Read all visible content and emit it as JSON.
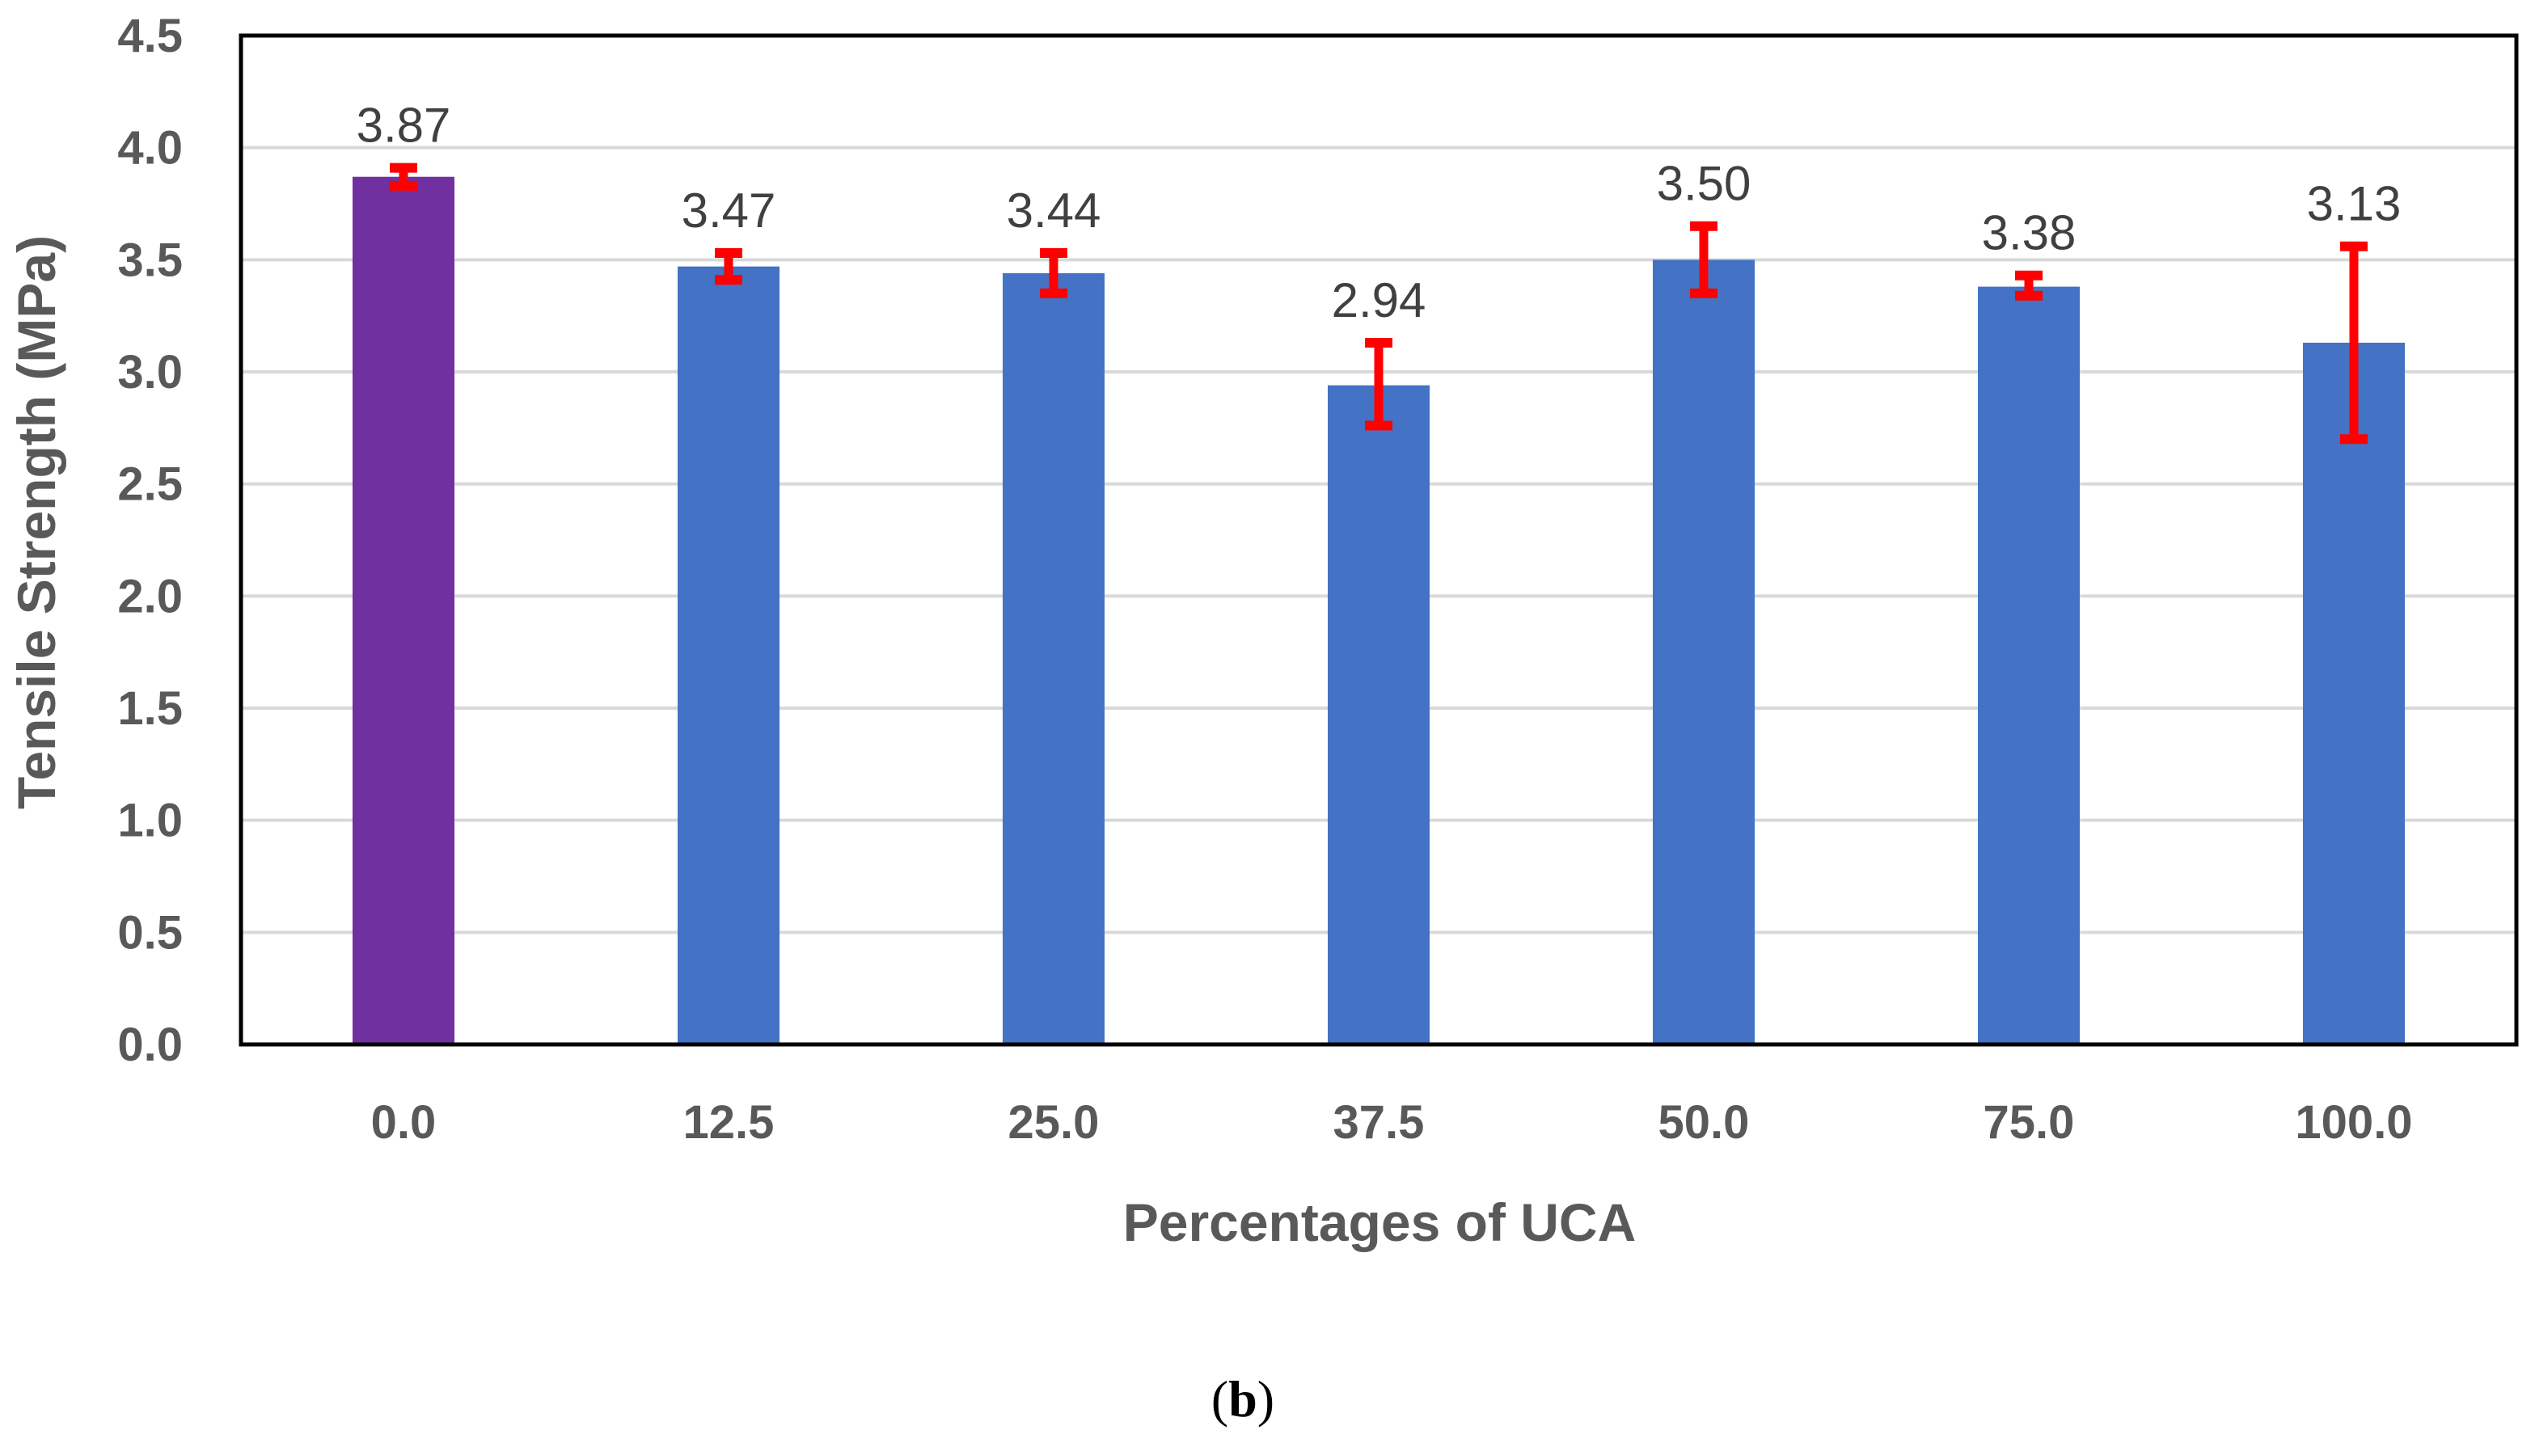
{
  "chart_data": {
    "type": "bar",
    "title": "",
    "xlabel": "Percentages of UCA",
    "ylabel": "Tensile Strength (MPa)",
    "categories": [
      "0.0",
      "12.5",
      "25.0",
      "37.5",
      "50.0",
      "75.0",
      "100.0"
    ],
    "values": [
      3.87,
      3.47,
      3.44,
      2.94,
      3.5,
      3.38,
      3.13
    ],
    "data_labels": [
      "3.87",
      "3.47",
      "3.44",
      "2.94",
      "3.50",
      "3.38",
      "3.13"
    ],
    "error_low": [
      3.83,
      3.41,
      3.35,
      2.76,
      3.35,
      3.34,
      2.7
    ],
    "error_high": [
      3.91,
      3.53,
      3.53,
      3.13,
      3.65,
      3.43,
      3.56
    ],
    "ylim": [
      0,
      4.5
    ],
    "yticks": [
      "0.0",
      "0.5",
      "1.0",
      "1.5",
      "2.0",
      "2.5",
      "3.0",
      "3.5",
      "4.0",
      "4.5"
    ],
    "grid": true,
    "legend": "none",
    "colors": {
      "control_bar": "#7030A0",
      "bar": "#4472C4",
      "error_bar": "#FF0000",
      "gridline": "#D9D9D9",
      "axis": "#000000"
    }
  },
  "figure": {
    "panel_label_open": "(",
    "panel_label_letter": "b",
    "panel_label_close": ")"
  }
}
